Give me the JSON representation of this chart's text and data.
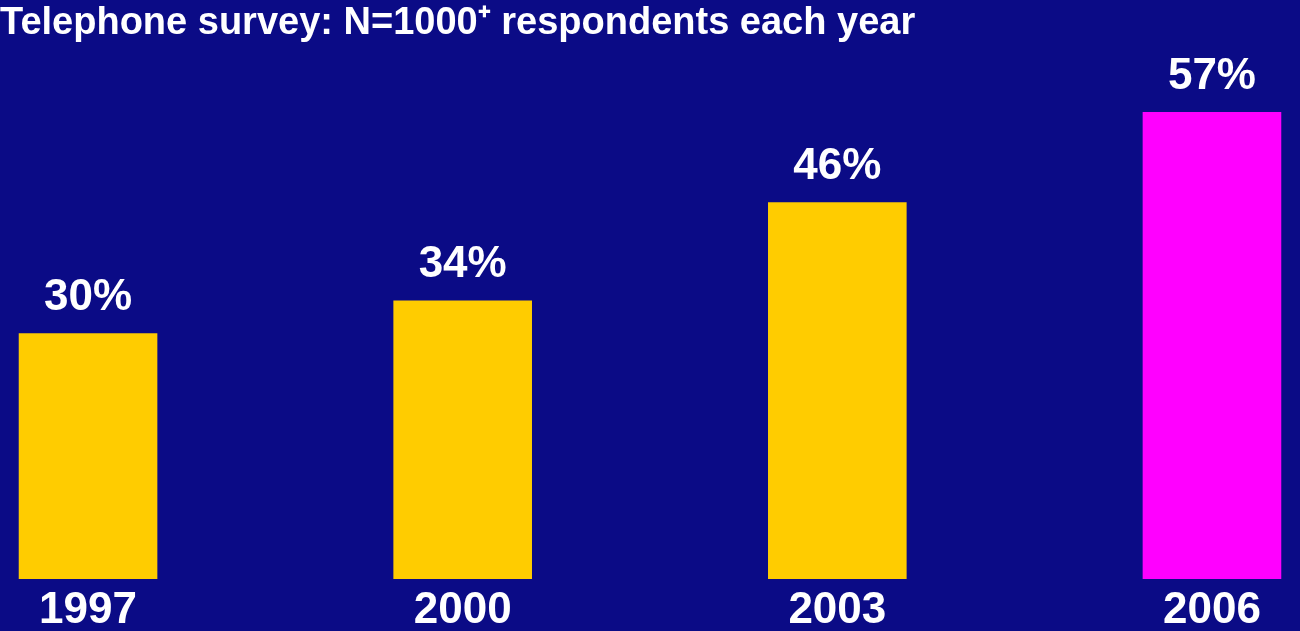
{
  "chart_data": {
    "type": "bar",
    "title": "Telephone survey:  N=1000⁺ respondents each year",
    "categories": [
      "1997",
      "2000",
      "2003",
      "2006"
    ],
    "values": [
      30,
      34,
      46,
      57
    ],
    "colors": [
      "#ffcc00",
      "#ffcc00",
      "#ffcc00",
      "#ff00ff"
    ],
    "value_labels": [
      "30%",
      "34%",
      "46%",
      "57%"
    ]
  }
}
